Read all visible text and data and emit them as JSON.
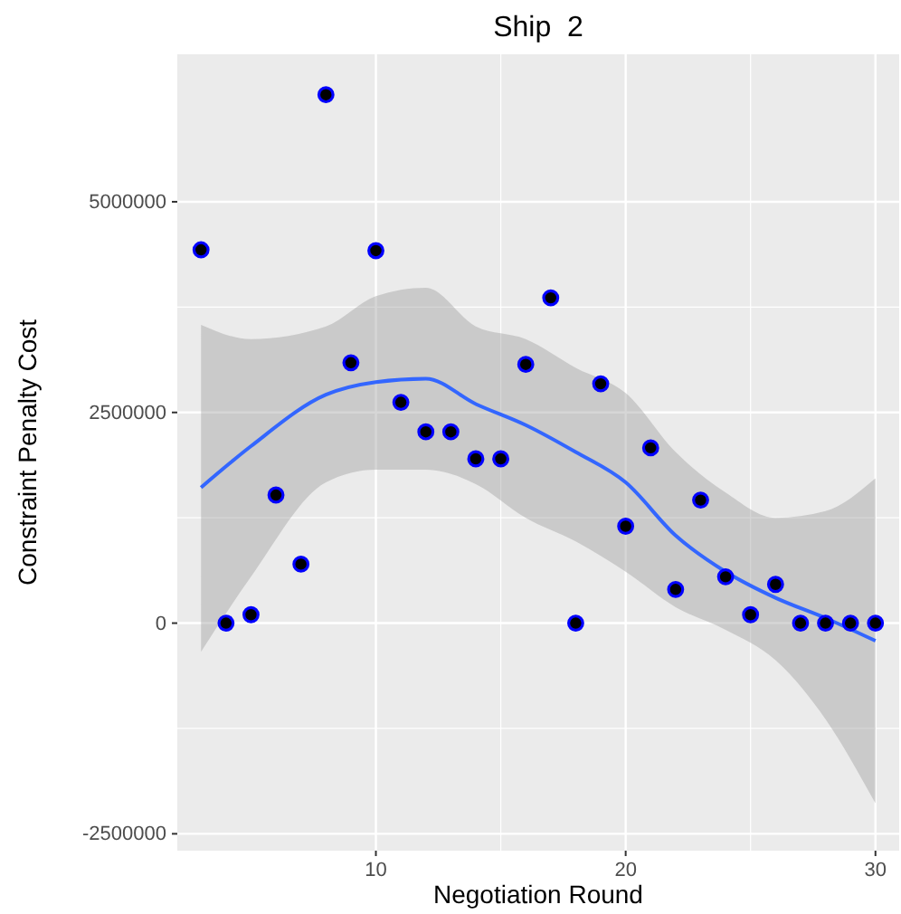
{
  "chart_data": {
    "type": "scatter",
    "title": "Ship  2",
    "xlabel": "Negotiation Round",
    "ylabel": "Constraint Penalty Cost",
    "xlim": [
      2.05,
      30.95
    ],
    "ylim": [
      -2700000,
      6750000
    ],
    "xticks": [
      10,
      20,
      30
    ],
    "yticks": [
      -2500000,
      0,
      2500000,
      5000000
    ],
    "grid": true,
    "series": [
      {
        "marker": "circle",
        "color": "#0000ff",
        "x": [
          3,
          4,
          5,
          6,
          7,
          8,
          9,
          10,
          11,
          12,
          13,
          14,
          15,
          16,
          17,
          18,
          19,
          20,
          21,
          22,
          23,
          24,
          25,
          26,
          27,
          28,
          29,
          30
        ],
        "values": [
          4430000,
          0,
          100000,
          1520000,
          700000,
          6270000,
          3090000,
          4420000,
          2620000,
          2270000,
          2270000,
          1950000,
          1950000,
          3070000,
          3860000,
          0,
          2840000,
          1150000,
          2080000,
          400000,
          1460000,
          550000,
          100000,
          460000,
          0,
          0,
          0,
          0
        ]
      },
      {
        "type": "line",
        "color": "#3366ff",
        "x": [
          3,
          5,
          8,
          10,
          12,
          14,
          16,
          18,
          20,
          22,
          24,
          26,
          28,
          30
        ],
        "values": [
          1610000,
          2100000,
          2710000,
          2860000,
          2900000,
          2600000,
          2350000,
          2030000,
          1670000,
          1040000,
          610000,
          300000,
          60000,
          -210000
        ],
        "lower": [
          -340000,
          550000,
          1670000,
          1820000,
          1820000,
          1650000,
          1250000,
          970000,
          610000,
          190000,
          -80000,
          -440000,
          -1140000,
          -2140000
        ],
        "upper": [
          3540000,
          3370000,
          3520000,
          3880000,
          3980000,
          3520000,
          3370000,
          3030000,
          2730000,
          2030000,
          1550000,
          1250000,
          1330000,
          1720000
        ]
      }
    ]
  }
}
